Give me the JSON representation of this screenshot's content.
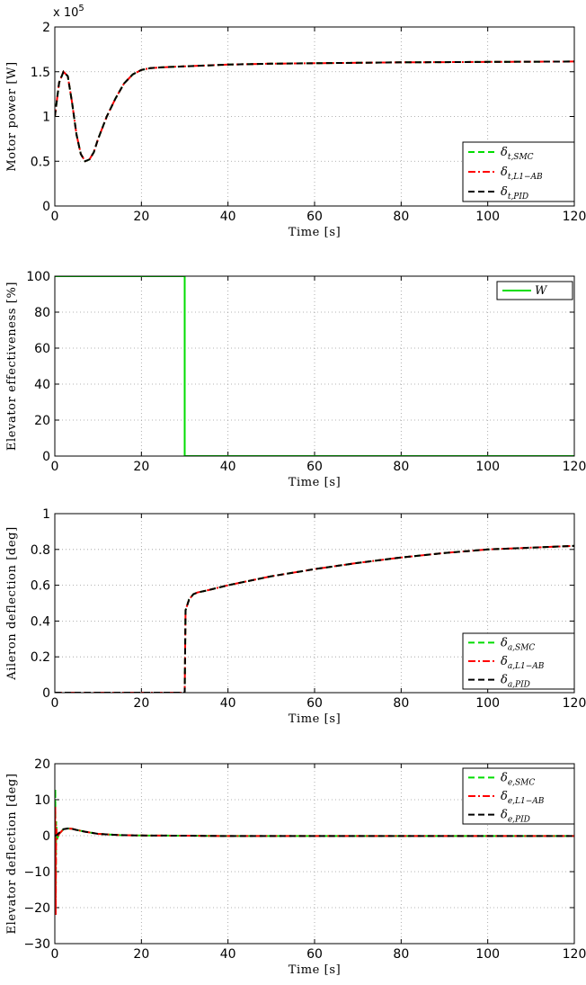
{
  "chart_data": [
    {
      "type": "line",
      "xlabel": "Time [s]",
      "ylabel": "Motor power [W]",
      "xlim": [
        0,
        120
      ],
      "ylim": [
        0,
        2
      ],
      "y_multiplier": "x 10^5",
      "xticks": [
        "0",
        "20",
        "40",
        "60",
        "80",
        "100",
        "120"
      ],
      "yticks": [
        "0",
        "0.5",
        "1",
        "1.5",
        "2"
      ],
      "grid": true,
      "legend_location": "bottom-right",
      "series": [
        {
          "name": "δt,SMC",
          "color": "#00dd00",
          "style": "dashed",
          "x": [
            0,
            1,
            2,
            3,
            4,
            5,
            6,
            7,
            8,
            9,
            10,
            12,
            14,
            16,
            18,
            20,
            22,
            25,
            30,
            40,
            50,
            60,
            70,
            80,
            90,
            100,
            110,
            120
          ],
          "y": [
            1.0,
            1.38,
            1.5,
            1.45,
            1.15,
            0.8,
            0.58,
            0.5,
            0.52,
            0.6,
            0.75,
            1.0,
            1.2,
            1.37,
            1.47,
            1.52,
            1.54,
            1.55,
            1.56,
            1.58,
            1.59,
            1.595,
            1.6,
            1.605,
            1.607,
            1.61,
            1.612,
            1.614
          ]
        },
        {
          "name": "δt,L1−AB",
          "color": "#ff0000",
          "style": "dashdot",
          "x": [
            0,
            1,
            2,
            3,
            4,
            5,
            6,
            7,
            8,
            9,
            10,
            12,
            14,
            16,
            18,
            20,
            22,
            25,
            30,
            40,
            50,
            60,
            70,
            80,
            90,
            100,
            110,
            120
          ],
          "y": [
            1.0,
            1.38,
            1.5,
            1.45,
            1.15,
            0.8,
            0.58,
            0.5,
            0.52,
            0.6,
            0.75,
            1.0,
            1.2,
            1.37,
            1.47,
            1.52,
            1.54,
            1.55,
            1.56,
            1.58,
            1.59,
            1.595,
            1.6,
            1.605,
            1.607,
            1.61,
            1.612,
            1.614
          ]
        },
        {
          "name": "δt,PID",
          "color": "#000000",
          "style": "dashed",
          "x": [
            0,
            1,
            2,
            3,
            4,
            5,
            6,
            7,
            8,
            9,
            10,
            12,
            14,
            16,
            18,
            20,
            22,
            25,
            30,
            40,
            50,
            60,
            70,
            80,
            90,
            100,
            110,
            120
          ],
          "y": [
            1.0,
            1.38,
            1.5,
            1.45,
            1.15,
            0.8,
            0.58,
            0.5,
            0.52,
            0.6,
            0.75,
            1.0,
            1.2,
            1.37,
            1.47,
            1.52,
            1.54,
            1.55,
            1.56,
            1.58,
            1.59,
            1.595,
            1.6,
            1.605,
            1.607,
            1.61,
            1.612,
            1.614
          ]
        }
      ]
    },
    {
      "type": "line",
      "xlabel": "Time [s]",
      "ylabel": "Elevator effectiveness [%]",
      "xlim": [
        0,
        120
      ],
      "ylim": [
        0,
        100
      ],
      "xticks": [
        "0",
        "20",
        "40",
        "60",
        "80",
        "100",
        "120"
      ],
      "yticks": [
        "0",
        "20",
        "40",
        "60",
        "80",
        "100"
      ],
      "grid": true,
      "legend_location": "top-right",
      "series": [
        {
          "name": "W",
          "color": "#00dd00",
          "style": "solid",
          "x": [
            0,
            30,
            30,
            120
          ],
          "y": [
            100,
            100,
            0,
            0
          ]
        }
      ]
    },
    {
      "type": "line",
      "xlabel": "Time [s]",
      "ylabel": "Aileron deflection [deg]",
      "xlim": [
        0,
        120
      ],
      "ylim": [
        0,
        1
      ],
      "xticks": [
        "0",
        "20",
        "40",
        "60",
        "80",
        "100",
        "120"
      ],
      "yticks": [
        "0",
        "0.2",
        "0.4",
        "0.6",
        "0.8",
        "1"
      ],
      "grid": true,
      "legend_location": "bottom-right",
      "series": [
        {
          "name": "δa,SMC",
          "color": "#00dd00",
          "style": "dashed",
          "x": [
            0,
            30,
            30.2,
            31,
            32,
            33,
            35,
            40,
            50,
            60,
            70,
            80,
            90,
            100,
            110,
            120
          ],
          "y": [
            0,
            0,
            0.46,
            0.52,
            0.55,
            0.56,
            0.57,
            0.6,
            0.65,
            0.69,
            0.725,
            0.755,
            0.78,
            0.8,
            0.81,
            0.82
          ]
        },
        {
          "name": "δa,L1−AB",
          "color": "#ff0000",
          "style": "dashdot",
          "x": [
            0,
            30,
            30.2,
            31,
            32,
            33,
            35,
            40,
            50,
            60,
            70,
            80,
            90,
            100,
            110,
            120
          ],
          "y": [
            0,
            0,
            0.46,
            0.52,
            0.55,
            0.56,
            0.57,
            0.6,
            0.65,
            0.69,
            0.725,
            0.755,
            0.78,
            0.8,
            0.81,
            0.82
          ]
        },
        {
          "name": "δa,PID",
          "color": "#000000",
          "style": "dashed",
          "x": [
            0,
            30,
            30.2,
            31,
            32,
            33,
            35,
            40,
            50,
            60,
            70,
            80,
            90,
            100,
            110,
            120
          ],
          "y": [
            0,
            0,
            0.46,
            0.52,
            0.55,
            0.56,
            0.57,
            0.6,
            0.65,
            0.69,
            0.725,
            0.755,
            0.78,
            0.8,
            0.81,
            0.82
          ]
        }
      ]
    },
    {
      "type": "line",
      "xlabel": "Time [s]",
      "ylabel": "Elevator deflection [deg]",
      "xlim": [
        0,
        120
      ],
      "ylim": [
        -30,
        20
      ],
      "xticks": [
        "0",
        "20",
        "40",
        "60",
        "80",
        "100",
        "120"
      ],
      "yticks": [
        "−30",
        "−20",
        "−10",
        "0",
        "10",
        "20"
      ],
      "grid": true,
      "legend_location": "top-right",
      "series": [
        {
          "name": "δe,SMC",
          "color": "#00dd00",
          "style": "dashed",
          "x": [
            0,
            0.1,
            0.2,
            0.3,
            0.5,
            1,
            2,
            3,
            4,
            5,
            7,
            10,
            15,
            20,
            25,
            30,
            40,
            60,
            80,
            100,
            120
          ],
          "y": [
            0,
            13,
            -20,
            4,
            -1,
            0.5,
            1.8,
            2.0,
            1.9,
            1.6,
            1.1,
            0.5,
            0.15,
            0.05,
            0.02,
            0.0,
            -0.1,
            -0.1,
            -0.1,
            -0.1,
            -0.1
          ]
        },
        {
          "name": "δe,L1−AB",
          "color": "#ff0000",
          "style": "dashdot",
          "x": [
            0,
            0.1,
            0.2,
            0.3,
            0.5,
            1,
            2,
            3,
            4,
            5,
            7,
            10,
            15,
            20,
            25,
            30,
            40,
            60,
            80,
            100,
            120
          ],
          "y": [
            0,
            8,
            -22,
            3,
            -1,
            0.5,
            1.8,
            2.0,
            1.9,
            1.6,
            1.1,
            0.5,
            0.15,
            0.05,
            0.02,
            0.0,
            -0.1,
            -0.1,
            -0.1,
            -0.1,
            -0.1
          ]
        },
        {
          "name": "δe,PID",
          "color": "#000000",
          "style": "dashed",
          "x": [
            0,
            0.5,
            1,
            2,
            3,
            4,
            5,
            7,
            10,
            15,
            20,
            25,
            30,
            40,
            60,
            80,
            100,
            120
          ],
          "y": [
            0,
            0.2,
            0.8,
            1.8,
            2.0,
            1.9,
            1.6,
            1.1,
            0.5,
            0.15,
            0.05,
            0.02,
            0.0,
            -0.1,
            -0.1,
            -0.1,
            -0.1,
            -0.1
          ]
        }
      ]
    }
  ]
}
